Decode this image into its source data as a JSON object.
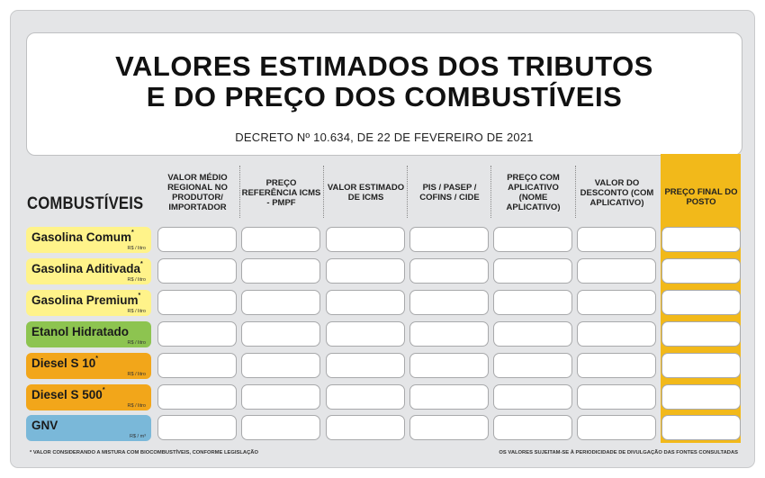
{
  "header": {
    "title_line1": "VALORES ESTIMADOS DOS TRIBUTOS",
    "title_line2": "E DO PREÇO DOS COMBUSTÍVEIS",
    "decree": "DECRETO Nº 10.634, DE 22 DE FEVEREIRO DE 2021"
  },
  "table": {
    "fuel_column_label": "COMBUSTÍVEIS",
    "columns": [
      "VALOR MÉDIO REGIONAL NO PRODUTOR/ IMPORTADOR",
      "PREÇO REFERÊNCIA ICMS - PMPF",
      "VALOR ESTIMADO DE ICMS",
      "PIS / PASEP / COFINS / CIDE",
      "PREÇO COM APLICATIVO (NOME APLICATIVO)",
      "VALOR DO DESCONTO (COM APLICATIVO)",
      "PREÇO FINAL DO POSTO"
    ],
    "rows": [
      {
        "name": "Gasolina Comum",
        "mark": "*",
        "unit": "R$ / litro",
        "color": "#fff38a"
      },
      {
        "name": "Gasolina Aditivada",
        "mark": "*",
        "unit": "R$ / litro",
        "color": "#fff38a"
      },
      {
        "name": "Gasolina Premium",
        "mark": "*",
        "unit": "R$ / litro",
        "color": "#fff38a"
      },
      {
        "name": "Etanol Hidratado",
        "mark": "",
        "unit": "R$ / litro",
        "color": "#8dc450"
      },
      {
        "name": "Diesel S 10",
        "mark": "*",
        "unit": "R$ / litro",
        "color": "#f2a61a"
      },
      {
        "name": "Diesel S 500",
        "mark": "*",
        "unit": "R$ / litro",
        "color": "#f2a61a"
      },
      {
        "name": "GNV",
        "mark": "",
        "unit": "R$ / m³",
        "color": "#7ab8d9"
      }
    ],
    "highlight_color": "#f2b91a"
  },
  "footer": {
    "left_note": "* VALOR CONSIDERANDO A MISTURA COM BIOCOMBUSTÍVEIS, CONFORME LEGISLAÇÃO",
    "right_note": "OS VALORES SUJEITAM-SE À PERIODICIDADE DE DIVULGAÇÃO DAS FONTES CONSULTADAS"
  }
}
